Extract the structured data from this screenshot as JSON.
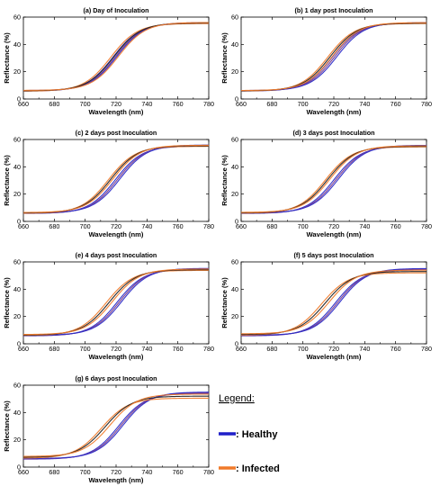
{
  "legend": {
    "title": "Legend:",
    "items": [
      {
        "label": ": Healthy",
        "color": "#1f1fc8"
      },
      {
        "label": ": Infected",
        "color": "#f07a2a"
      }
    ]
  },
  "colors": {
    "healthy": "#2b2bc8",
    "infected": "#f07a2a",
    "dark": "#222222",
    "purple": "#7a3a8a"
  },
  "chart_data": [
    {
      "type": "line",
      "title": "(a) Day of Inoculation",
      "xlabel": "Wavelength (nm)",
      "ylabel": "Reflectance (%)",
      "xlim": [
        660,
        780
      ],
      "ylim": [
        0,
        60
      ],
      "xticks": [
        660,
        680,
        700,
        720,
        740,
        760,
        780
      ],
      "yticks": [
        0,
        20,
        40,
        60
      ],
      "grid": false,
      "series_groups": [
        {
          "name": "Healthy",
          "midpoints": [
            718,
            719.5,
            720.5
          ],
          "plateau": [
            55.5,
            55.8,
            56
          ],
          "base": [
            5.8,
            6.0,
            6.2
          ]
        },
        {
          "name": "Infected",
          "midpoints": [
            716.5,
            718.5,
            721.5
          ],
          "plateau": [
            55.3,
            55.7,
            56.1
          ],
          "base": [
            5.7,
            6.0,
            6.3
          ]
        }
      ]
    },
    {
      "type": "line",
      "title": "(b) 1 day post Inoculation",
      "xlabel": "Wavelength (nm)",
      "ylabel": "Reflectance (%)",
      "xlim": [
        660,
        780
      ],
      "ylim": [
        0,
        60
      ],
      "xticks": [
        660,
        680,
        700,
        720,
        740,
        760,
        780
      ],
      "yticks": [
        0,
        20,
        40,
        60
      ],
      "grid": false,
      "series_groups": [
        {
          "name": "Healthy",
          "midpoints": [
            719,
            720.5,
            722
          ],
          "plateau": [
            55.5,
            55.8,
            56
          ],
          "base": [
            5.8,
            6.0,
            6.2
          ]
        },
        {
          "name": "Infected",
          "midpoints": [
            716,
            717.5,
            719
          ],
          "plateau": [
            55.3,
            55.6,
            56
          ],
          "base": [
            5.8,
            6.0,
            6.2
          ]
        }
      ]
    },
    {
      "type": "line",
      "title": "(c) 2 days post Inoculation",
      "xlabel": "Wavelength (nm)",
      "ylabel": "Reflectance (%)",
      "xlim": [
        660,
        780
      ],
      "ylim": [
        0,
        60
      ],
      "xticks": [
        660,
        680,
        700,
        720,
        740,
        760,
        780
      ],
      "yticks": [
        0,
        20,
        40,
        60
      ],
      "grid": false,
      "series_groups": [
        {
          "name": "Healthy",
          "midpoints": [
            719.5,
            721,
            722.5
          ],
          "plateau": [
            55.2,
            55.6,
            56
          ],
          "base": [
            5.8,
            6.0,
            6.3
          ]
        },
        {
          "name": "Infected",
          "midpoints": [
            715,
            716.5,
            718
          ],
          "plateau": [
            55,
            55.4,
            55.8
          ],
          "base": [
            5.9,
            6.2,
            6.5
          ]
        }
      ]
    },
    {
      "type": "line",
      "title": "(d) 3 days post Inoculation",
      "xlabel": "Wavelength (nm)",
      "ylabel": "Reflectance (%)",
      "xlim": [
        660,
        780
      ],
      "ylim": [
        0,
        60
      ],
      "xticks": [
        660,
        680,
        700,
        720,
        740,
        760,
        780
      ],
      "yticks": [
        0,
        20,
        40,
        60
      ],
      "grid": false,
      "series_groups": [
        {
          "name": "Healthy",
          "midpoints": [
            720,
            721.5,
            723
          ],
          "plateau": [
            55,
            55.4,
            55.8
          ],
          "base": [
            5.8,
            6.0,
            6.3
          ]
        },
        {
          "name": "Infected",
          "midpoints": [
            714.5,
            716,
            717.5
          ],
          "plateau": [
            54.6,
            55,
            55.4
          ],
          "base": [
            6.0,
            6.3,
            6.6
          ]
        }
      ]
    },
    {
      "type": "line",
      "title": "(e) 4 days post Inoculation",
      "xlabel": "Wavelength (nm)",
      "ylabel": "Reflectance (%)",
      "xlim": [
        660,
        780
      ],
      "ylim": [
        0,
        60
      ],
      "xticks": [
        660,
        680,
        700,
        720,
        740,
        760,
        780
      ],
      "yticks": [
        0,
        20,
        40,
        60
      ],
      "grid": false,
      "series_groups": [
        {
          "name": "Healthy",
          "midpoints": [
            720.5,
            722,
            723.5
          ],
          "plateau": [
            54.6,
            55,
            55.3
          ],
          "base": [
            5.8,
            6.0,
            6.3
          ]
        },
        {
          "name": "Infected",
          "midpoints": [
            713.5,
            715.5,
            717.5
          ],
          "plateau": [
            53.8,
            54.3,
            54.8
          ],
          "base": [
            6.1,
            6.4,
            6.8
          ]
        }
      ]
    },
    {
      "type": "line",
      "title": "(f) 5 days post Inoculation",
      "xlabel": "Wavelength (nm)",
      "ylabel": "Reflectance (%)",
      "xlim": [
        660,
        780
      ],
      "ylim": [
        0,
        60
      ],
      "xticks": [
        660,
        680,
        700,
        720,
        740,
        760,
        780
      ],
      "yticks": [
        0,
        20,
        40,
        60
      ],
      "grid": false,
      "series_groups": [
        {
          "name": "Healthy",
          "midpoints": [
            721,
            722.5,
            724
          ],
          "plateau": [
            54.2,
            54.7,
            55.2
          ],
          "base": [
            5.8,
            6.0,
            6.3
          ]
        },
        {
          "name": "Infected",
          "midpoints": [
            712,
            714.5,
            717
          ],
          "plateau": [
            52,
            53,
            54
          ],
          "base": [
            6.3,
            6.8,
            7.3
          ]
        }
      ]
    },
    {
      "type": "line",
      "title": "(g) 6 days post Inoculation",
      "xlabel": "Wavelength (nm)",
      "ylabel": "Reflectance (%)",
      "xlim": [
        660,
        780
      ],
      "ylim": [
        0,
        60
      ],
      "xticks": [
        660,
        680,
        700,
        720,
        740,
        760,
        780
      ],
      "yticks": [
        0,
        20,
        40,
        60
      ],
      "grid": false,
      "series_groups": [
        {
          "name": "Healthy",
          "midpoints": [
            721.5,
            723,
            724.5
          ],
          "plateau": [
            54,
            54.5,
            55
          ],
          "base": [
            5.8,
            6.0,
            6.3
          ]
        },
        {
          "name": "Infected",
          "midpoints": [
            710.5,
            713,
            716
          ],
          "plateau": [
            50.5,
            52,
            53.5
          ],
          "base": [
            6.5,
            7.2,
            7.8
          ]
        }
      ]
    }
  ]
}
